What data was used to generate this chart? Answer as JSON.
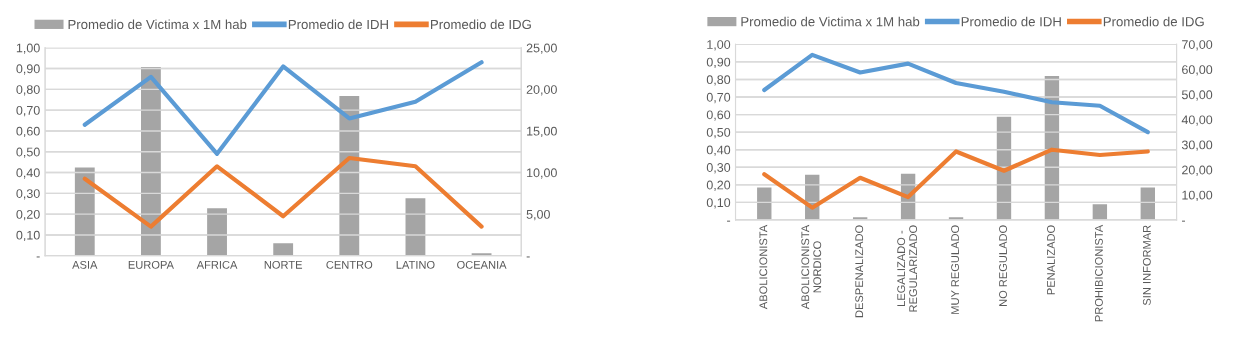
{
  "chart_data": [
    {
      "type": "bar",
      "categories": [
        "ASIA",
        "EUROPA",
        "AFRICA",
        "NORTE",
        "CENTRO",
        "LATINO",
        "OCEANIA"
      ],
      "series": [
        {
          "name": "Promedio de Victima x 1M hab",
          "axis": "y2",
          "color": "#a5a5a5",
          "values": [
            10.6,
            22.7,
            5.7,
            1.5,
            19.2,
            6.9,
            0.3
          ]
        },
        {
          "name": "Promedio de IDH",
          "type": "line",
          "color": "#5b9bd5",
          "values": [
            0.63,
            0.86,
            0.49,
            0.91,
            0.66,
            0.74,
            0.93
          ]
        },
        {
          "name": "Promedio de IDG",
          "type": "line",
          "color": "#ed7d31",
          "values": [
            0.37,
            0.14,
            0.43,
            0.19,
            0.47,
            0.43,
            0.14
          ]
        }
      ],
      "ylim": [
        0,
        1
      ],
      "yticks": [
        {
          "value": 0,
          "label": "-"
        },
        {
          "value": 0.1,
          "label": "0,10"
        },
        {
          "value": 0.2,
          "label": "0,20"
        },
        {
          "value": 0.3,
          "label": "0,30"
        },
        {
          "value": 0.4,
          "label": "0,40"
        },
        {
          "value": 0.5,
          "label": "0,50"
        },
        {
          "value": 0.6,
          "label": "0,60"
        },
        {
          "value": 0.7,
          "label": "0,70"
        },
        {
          "value": 0.8,
          "label": "0,80"
        },
        {
          "value": 0.9,
          "label": "0,90"
        },
        {
          "value": 1,
          "label": "1,00"
        }
      ],
      "y2lim": [
        0,
        25
      ],
      "y2ticks": [
        {
          "value": 0,
          "label": "-"
        },
        {
          "value": 5,
          "label": "5,00"
        },
        {
          "value": 10,
          "label": "10,00"
        },
        {
          "value": 15,
          "label": "15,00"
        },
        {
          "value": 20,
          "label": "20,00"
        },
        {
          "value": 25,
          "label": "25,00"
        }
      ],
      "grid": "y",
      "legend": "top"
    },
    {
      "type": "bar",
      "categories": [
        "ABOLICIONISTA",
        "ABOLICIONISTA\nNORDICO",
        "DESPENALIZADO",
        "LEGALIZADO -\nREGULARIZADO",
        "MUY REGULADO",
        "NO REGULADO",
        "PENALIZADO",
        "PROHIBICIONISTA",
        "SIN INFORMAR"
      ],
      "series": [
        {
          "name": "Promedio de Victima x 1M hab",
          "axis": "y2",
          "color": "#a5a5a5",
          "values": [
            12.9,
            18.0,
            1.1,
            18.4,
            1.1,
            41.1,
            57.4,
            6.3,
            12.9
          ]
        },
        {
          "name": "Promedio de IDH",
          "type": "line",
          "color": "#5b9bd5",
          "values": [
            0.74,
            0.94,
            0.84,
            0.89,
            0.78,
            0.73,
            0.67,
            0.65,
            0.5
          ]
        },
        {
          "name": "Promedio de IDG",
          "type": "line",
          "color": "#ed7d31",
          "values": [
            0.26,
            0.07,
            0.24,
            0.13,
            0.39,
            0.28,
            0.4,
            0.37,
            0.39
          ]
        }
      ],
      "ylim": [
        0,
        1
      ],
      "yticks": [
        {
          "value": 0,
          "label": "-"
        },
        {
          "value": 0.1,
          "label": "0,10"
        },
        {
          "value": 0.2,
          "label": "0,20"
        },
        {
          "value": 0.3,
          "label": "0,30"
        },
        {
          "value": 0.4,
          "label": "0,40"
        },
        {
          "value": 0.5,
          "label": "0,50"
        },
        {
          "value": 0.6,
          "label": "0,60"
        },
        {
          "value": 0.7,
          "label": "0,70"
        },
        {
          "value": 0.8,
          "label": "0,80"
        },
        {
          "value": 0.9,
          "label": "0,90"
        },
        {
          "value": 1,
          "label": "1,00"
        }
      ],
      "y2lim": [
        0,
        70
      ],
      "y2ticks": [
        {
          "value": 0,
          "label": "-"
        },
        {
          "value": 10,
          "label": "10,00"
        },
        {
          "value": 20,
          "label": "20,00"
        },
        {
          "value": 30,
          "label": "30,00"
        },
        {
          "value": 40,
          "label": "40,00"
        },
        {
          "value": 50,
          "label": "50,00"
        },
        {
          "value": 60,
          "label": "60,00"
        },
        {
          "value": 70,
          "label": "70,00"
        }
      ],
      "grid": "y",
      "legend": "top"
    }
  ]
}
